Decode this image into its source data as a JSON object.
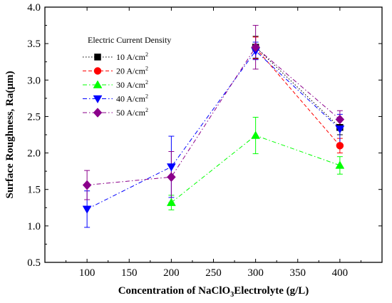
{
  "chart_data": {
    "type": "scatter",
    "xlabel": "Concentration of NaClO",
    "xlabel_sub": "3",
    "xlabel_rest": "Electrolyte (g/L)",
    "ylabel": "Surface Roughness, Ra(μm)",
    "xlim": [
      50,
      450
    ],
    "ylim": [
      0.5,
      4.0
    ],
    "x_ticks": [
      100,
      150,
      200,
      250,
      300,
      350,
      400
    ],
    "y_ticks": [
      "0.5",
      "1.0",
      "1.5",
      "2.0",
      "2.5",
      "3.0",
      "3.5",
      "4.0"
    ],
    "legend": {
      "title": "Electric Current Density",
      "position": "top-left"
    },
    "series": [
      {
        "name": "10 A/cm",
        "name_sup": "2",
        "color": "#000000",
        "marker": "square",
        "line": "dotted",
        "points": [
          [
            300,
            3.45
          ],
          [
            400,
            2.35
          ]
        ],
        "errors": [
          0.15,
          0.1
        ]
      },
      {
        "name": "20 A/cm",
        "name_sup": "2",
        "color": "#ff0000",
        "marker": "circle",
        "line": "dashed",
        "points": [
          [
            300,
            3.44
          ],
          [
            400,
            2.1
          ]
        ],
        "errors": [
          0.15,
          0.1
        ]
      },
      {
        "name": "30 A/cm",
        "name_sup": "2",
        "color": "#00ff00",
        "marker": "triangle-up",
        "line": "dashdot",
        "points": [
          [
            200,
            1.32
          ],
          [
            300,
            2.24
          ],
          [
            400,
            1.83
          ]
        ],
        "errors": [
          0.1,
          0.25,
          0.12
        ]
      },
      {
        "name": "40 A/cm",
        "name_sup": "2",
        "color": "#0000ff",
        "marker": "triangle-down",
        "line": "dashdot",
        "points": [
          [
            100,
            1.23
          ],
          [
            200,
            1.81
          ],
          [
            300,
            3.4
          ],
          [
            400,
            2.33
          ]
        ],
        "errors": [
          0.25,
          0.42,
          0.12,
          0.2
        ]
      },
      {
        "name": "50 A/cm",
        "name_sup": "2",
        "color": "#8b008b",
        "marker": "diamond",
        "line": "dashdot",
        "points": [
          [
            100,
            1.56
          ],
          [
            200,
            1.67
          ],
          [
            300,
            3.45
          ],
          [
            400,
            2.46
          ]
        ],
        "errors": [
          0.2,
          0.35,
          0.3,
          0.12
        ]
      }
    ]
  }
}
